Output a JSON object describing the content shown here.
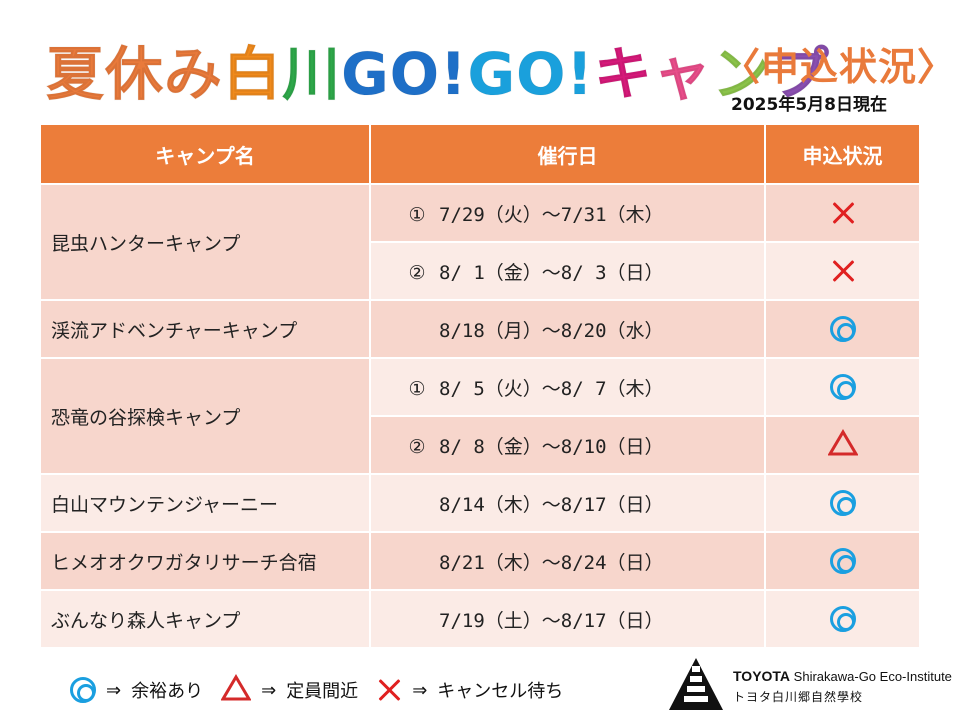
{
  "title": {
    "chars": [
      {
        "t": "夏",
        "c": "#e97a3b"
      },
      {
        "t": "休",
        "c": "#e97a3b"
      },
      {
        "t": "み",
        "c": "#e97a3b"
      },
      {
        "t": "白",
        "c": "#f08a1c"
      },
      {
        "t": "川",
        "c": "#2ea84a"
      },
      {
        "t": "G",
        "c": "#1e6fc7"
      },
      {
        "t": "O",
        "c": "#1e6fc7"
      },
      {
        "t": "!",
        "c": "#1e6fc7"
      },
      {
        "t": "G",
        "c": "#1aa0dc"
      },
      {
        "t": "O",
        "c": "#1aa0dc"
      },
      {
        "t": "!",
        "c": "#1aa0dc"
      },
      {
        "t": "キ",
        "c": "#d6197a"
      },
      {
        "t": "ャ",
        "c": "#e94d8a"
      },
      {
        "t": "ン",
        "c": "#8bc34a"
      },
      {
        "t": "プ",
        "c": "#8a4fb0"
      }
    ],
    "status": "〈申込状況〉",
    "as_of": "2025年5月8日現在"
  },
  "table": {
    "headers": [
      "キャンプ名",
      "催行日",
      "申込状況"
    ],
    "camps": [
      {
        "name": "昆虫ハンターキャンプ",
        "sessions": [
          {
            "num": "①",
            "date": "7/29（火）～7/31（木）",
            "status": "cross"
          },
          {
            "num": "②",
            "date": "8/ 1（金）～8/ 3（日）",
            "status": "cross"
          }
        ]
      },
      {
        "name": "渓流アドベンチャーキャンプ",
        "sessions": [
          {
            "num": "",
            "date": "8/18（月）～8/20（水）",
            "status": "double"
          }
        ]
      },
      {
        "name": "恐竜の谷探検キャンプ",
        "sessions": [
          {
            "num": "①",
            "date": "8/ 5（火）～8/ 7（木）",
            "status": "double"
          },
          {
            "num": "②",
            "date": "8/ 8（金）～8/10（日）",
            "status": "triangle"
          }
        ]
      },
      {
        "name": "白山マウンテンジャーニー",
        "sessions": [
          {
            "num": "",
            "date": "8/14（木）～8/17（日）",
            "status": "double"
          }
        ]
      },
      {
        "name": "ヒメオオクワガタリサーチ合宿",
        "sessions": [
          {
            "num": "",
            "date": "8/21（木）～8/24（日）",
            "status": "double"
          }
        ]
      },
      {
        "name": "ぶんなり森人キャンプ",
        "sessions": [
          {
            "num": "",
            "date": "7/19（土）～8/17（日）",
            "status": "double"
          }
        ]
      }
    ]
  },
  "legend": [
    {
      "symbol": "double",
      "arrow": "⇒",
      "label": "余裕あり"
    },
    {
      "symbol": "triangle",
      "arrow": "⇒",
      "label": "定員間近"
    },
    {
      "symbol": "cross",
      "arrow": "⇒",
      "label": "キャンセル待ち"
    }
  ],
  "logo": {
    "brand": "TOYOTA",
    "name_en": "Shirakawa-Go Eco-Institute",
    "name_ja": "トヨタ白川郷自然學校"
  },
  "colors": {
    "header": "#ec7d3a",
    "row_dark": "#f7d6cc",
    "row_light": "#fbebe6",
    "double_circle": "#1a9fe0",
    "triangle": "#d42a2a",
    "cross": "#e02020"
  }
}
